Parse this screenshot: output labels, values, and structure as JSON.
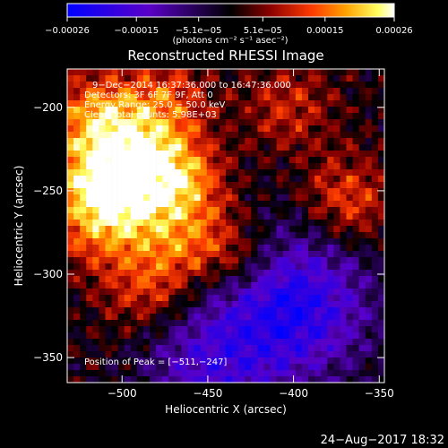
{
  "chart_data": {
    "type": "heatmap",
    "title": "Reconstructed RHESSI Image",
    "xlabel": "Heliocentric X (arcsec)",
    "ylabel": "Heliocentric Y (arcsec)",
    "xlim": [
      -532,
      -347
    ],
    "ylim": [
      -365,
      -177
    ],
    "x_ticks": [
      -500,
      -450,
      -400,
      -350
    ],
    "y_ticks": [
      -350,
      -300,
      -250,
      -200
    ],
    "x_tick_labels": [
      "−500",
      "−450",
      "−400",
      "−350"
    ],
    "y_tick_labels": [
      "−350",
      "−300",
      "−250",
      "−200"
    ],
    "colorbar": {
      "range": [
        -0.00026,
        0.00026
      ],
      "tick_labels": [
        "−0.00026",
        "−0.00015",
        "−5.1e−05",
        "5.1e−05",
        "0.00015",
        "0.00026"
      ],
      "tick_values": [
        -0.00026,
        -0.00015,
        -5.1e-05,
        5.1e-05,
        0.00015,
        0.00026
      ],
      "unit_label": "(photons cm⁻² s⁻¹ asec⁻²)",
      "colormap": [
        "#0000ff",
        "#5a00c8",
        "#000000",
        "#8b0000",
        "#ff3c00",
        "#ffa000",
        "#ffff60",
        "#ffffff"
      ]
    },
    "annotations": {
      "time_range": "9−Dec−2014 16:37:36.000 to 16:47:36.000",
      "detectors": "Detectors: 3F 6F 7F 9F, Att 0",
      "energy": "Energy Range: 25.0 − 50.0 keV",
      "clean": "Clean    Total counts: 5.98E+03",
      "peak": "Position of Peak = [−511,−247]"
    },
    "peak_position": [
      -511,
      -247
    ],
    "footer_date": "24−Aug−2017 18:32"
  }
}
